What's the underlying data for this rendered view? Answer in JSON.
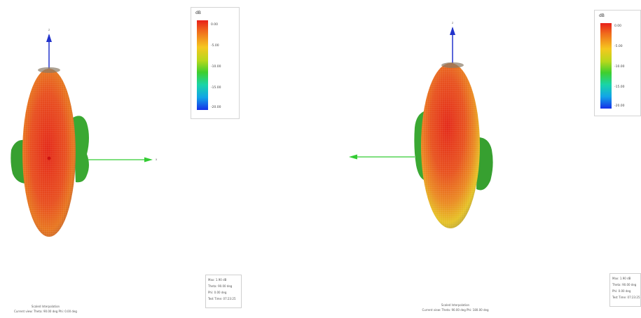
{
  "panels": [
    {
      "colorbar": {
        "title": "dB",
        "ticks": [
          "0.00",
          "-5.00",
          "-10.00",
          "-15.00",
          "-20.00"
        ],
        "colors": [
          "#e8201a",
          "#f5c71e",
          "#3fcf2e",
          "#12a4e8",
          "#1530e8"
        ]
      },
      "info_box": [
        "Max: 1.90 dB",
        "Theta: 90.00 deg",
        "Phi: 0.00 deg",
        "Test Time: 07:23:25"
      ],
      "caption": [
        "Scaled Interpolation",
        "Current view:   Theta: 90.00 deg     Phi: 0.00 deg"
      ]
    },
    {
      "colorbar": {
        "title": "dB",
        "ticks": [
          "0.00",
          "-5.00",
          "-10.00",
          "-15.00",
          "-20.00"
        ],
        "colors": [
          "#e8201a",
          "#f5c71e",
          "#3fcf2e",
          "#12a4e8",
          "#1530e8"
        ]
      },
      "info_box": [
        "Max: 1.90 dB",
        "Theta: 90.00 deg",
        "Phi: 0.00 deg",
        "Test Time: 07:23:25"
      ],
      "caption": [
        "Scaled Interpolation",
        "Current view:   Theta: 90.00 deg     Phi: 180.00 deg"
      ]
    }
  ],
  "axis_colors": {
    "z_axis": "#2233cc",
    "x_axis": "#33cc33"
  }
}
